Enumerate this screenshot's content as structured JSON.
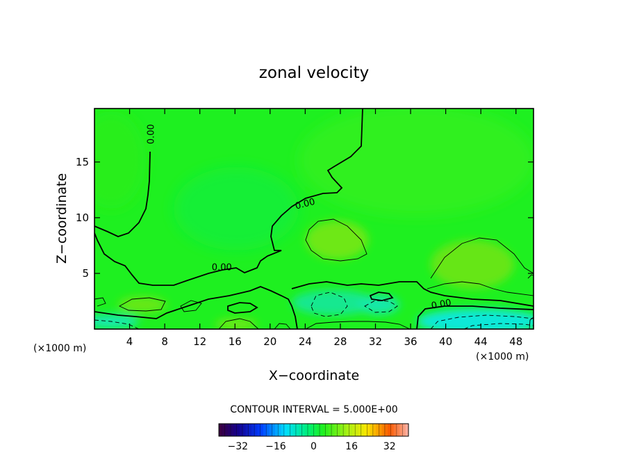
{
  "chart_data": {
    "type": "heatmap",
    "title": "zonal velocity",
    "xlabel": "X−coordinate",
    "ylabel": "Z−coordinate",
    "x_unit_left": "(×1000 m)",
    "x_unit_right": "(×1000 m)",
    "xlim": [
      0,
      50
    ],
    "ylim": [
      0,
      19.8
    ],
    "x_ticks": [
      4,
      8,
      12,
      16,
      20,
      24,
      28,
      32,
      36,
      40,
      44,
      48
    ],
    "y_ticks": [
      5,
      10,
      15
    ],
    "x_tick_labels": [
      "4",
      "8",
      "12",
      "16",
      "20",
      "24",
      "28",
      "32",
      "36",
      "40",
      "44",
      "48"
    ],
    "y_tick_labels": [
      "5",
      "10",
      "15"
    ],
    "contour_interval_text": "CONTOUR INTERVAL = 5.000E+00",
    "contour_labels": [
      {
        "text": "0.00",
        "x": 6.5,
        "z": 17.5,
        "rotate": -90
      },
      {
        "text": "0.00",
        "x": 24.0,
        "z": 11.2,
        "rotate": -15
      },
      {
        "text": "0.00",
        "x": 14.5,
        "z": 5.5,
        "rotate": 0
      },
      {
        "text": "0.00",
        "x": 39.5,
        "z": 2.2,
        "rotate": -10
      }
    ],
    "colorbar": {
      "range": [
        -40,
        40
      ],
      "ticks": [
        -32,
        -16,
        0,
        16,
        32
      ],
      "tick_labels": [
        "−32",
        "−16",
        "0",
        "16",
        "32"
      ]
    },
    "background_color": "#1ff21f"
  }
}
